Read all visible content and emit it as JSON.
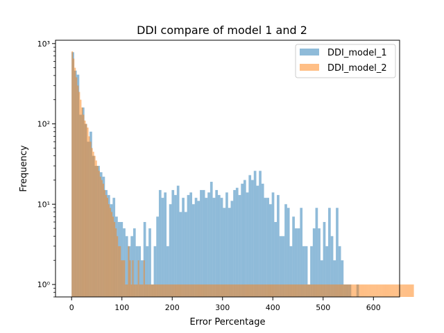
{
  "chart_data": {
    "type": "bar",
    "title": "DDI compare of model 1 and 2",
    "xlabel": "Error Percentage",
    "ylabel": "Frequency",
    "xlim": [
      -32,
      652
    ],
    "ylim": [
      0.7,
      1100
    ],
    "y_scale": "log",
    "x_ticks": [
      0,
      100,
      200,
      300,
      400,
      500,
      600
    ],
    "x_tick_labels": [
      "0",
      "100",
      "200",
      "300",
      "400",
      "500",
      "600"
    ],
    "y_ticks": [
      1,
      10,
      100,
      1000
    ],
    "y_tick_labels": [
      "10⁰",
      "10¹",
      "10²",
      "10³"
    ],
    "legend": {
      "position": "top-right"
    },
    "series": [
      {
        "name": "DDI_model_1",
        "color": "#1f77b4",
        "opacity": 0.5,
        "bin_start": 0,
        "bin_width": 5.1,
        "values": [
          780,
          460,
          410,
          130,
          160,
          100,
          60,
          80,
          40,
          30,
          30,
          25,
          22,
          15,
          13,
          10,
          12,
          7,
          6,
          6,
          5,
          4,
          3,
          4,
          5,
          3,
          3,
          2,
          6,
          3,
          5,
          1,
          3,
          7,
          15,
          12,
          14,
          3,
          10,
          15,
          13,
          17,
          8,
          12,
          8,
          13,
          14,
          10,
          12,
          11,
          15,
          15,
          12,
          14,
          19,
          12,
          15,
          13,
          12,
          9,
          14,
          9,
          11,
          15,
          16,
          13,
          18,
          20,
          14,
          23,
          20,
          26,
          17,
          26,
          18,
          12,
          12,
          10,
          14,
          6,
          13,
          4,
          4,
          10,
          9,
          3,
          7,
          5,
          5,
          9,
          3,
          3,
          1,
          3,
          5,
          9,
          5,
          2,
          6,
          3,
          9,
          4,
          2,
          9,
          3,
          2,
          1,
          1,
          1,
          0,
          0,
          1,
          0,
          0,
          0,
          0,
          0,
          0,
          0,
          0,
          0,
          0,
          0,
          0,
          0,
          0,
          0,
          0,
          0,
          0,
          0,
          0,
          0,
          0,
          0,
          0,
          0,
          0,
          0,
          0,
          0,
          0,
          0,
          0,
          0,
          0,
          0,
          0,
          0,
          0,
          0,
          0,
          0,
          0,
          0,
          0,
          0,
          0,
          0,
          0,
          0,
          0,
          0,
          0,
          0,
          0,
          0,
          0,
          0,
          0,
          0,
          0,
          0,
          0,
          0,
          0,
          0,
          0,
          0,
          0,
          0,
          0,
          0,
          0,
          0,
          0,
          0,
          0,
          0,
          0,
          0,
          0,
          0,
          0,
          0,
          0,
          0,
          0,
          0,
          0,
          0,
          0,
          0,
          0,
          0,
          0,
          0,
          0,
          0,
          0,
          0,
          0,
          0,
          0,
          0,
          0,
          0,
          0,
          0,
          0,
          0,
          0,
          0,
          0,
          0,
          0,
          0,
          0,
          0,
          0,
          0,
          0,
          0,
          0,
          0,
          0,
          0,
          0,
          0
        ]
      },
      {
        "name": "DDI_model_2",
        "color": "#ff7f0e",
        "opacity": 0.5,
        "bin_start": 0,
        "bin_width": 2.8,
        "values": [
          800,
          650,
          500,
          380,
          300,
          250,
          200,
          160,
          130,
          110,
          100,
          90,
          70,
          60,
          50,
          45,
          40,
          35,
          30,
          26,
          22,
          20,
          18,
          15,
          13,
          12,
          10,
          9,
          8,
          7,
          6,
          5,
          4,
          3,
          3,
          2,
          2,
          2,
          1,
          1,
          3,
          2,
          1,
          2,
          1,
          1,
          1,
          2,
          1,
          1,
          1,
          2,
          1,
          1,
          1,
          1,
          1,
          1,
          1,
          1,
          1,
          1,
          1,
          1,
          1,
          1,
          1,
          1,
          1,
          1,
          1,
          1,
          1,
          1,
          1,
          1,
          1,
          1,
          1,
          1,
          1,
          1,
          1,
          1,
          1,
          1,
          1,
          1,
          1,
          1,
          1,
          1,
          1,
          1,
          1,
          1,
          1,
          1,
          1,
          1,
          1,
          1,
          1,
          1,
          1,
          1,
          1,
          1,
          1,
          1,
          1,
          1,
          1,
          1,
          1,
          1,
          1,
          1,
          1,
          1,
          1,
          1,
          1,
          1,
          1,
          1,
          1,
          1,
          1,
          1,
          1,
          1,
          1,
          1,
          1,
          1,
          1,
          1,
          1,
          1,
          1,
          1,
          1,
          1,
          1,
          1,
          1,
          1,
          1,
          1,
          1,
          1,
          1,
          1,
          1,
          1,
          1,
          1,
          1,
          1,
          1,
          1,
          1,
          1,
          1,
          1,
          1,
          1,
          1,
          1,
          1,
          1,
          1,
          1,
          1,
          1,
          1,
          1,
          1,
          1,
          1,
          1,
          1,
          1,
          1,
          1,
          1,
          1,
          1,
          1,
          1,
          1,
          1,
          1,
          1,
          1,
          1,
          1,
          1,
          1,
          1,
          1,
          1,
          1,
          1,
          1,
          1,
          1,
          1,
          1,
          1,
          1,
          1,
          1,
          1,
          1,
          1,
          1,
          1,
          1,
          1,
          1,
          1,
          1,
          1,
          1,
          1,
          1,
          1,
          1,
          1,
          1,
          1,
          1,
          1,
          1,
          1,
          1,
          1,
          1,
          1,
          1,
          1
        ]
      }
    ]
  }
}
